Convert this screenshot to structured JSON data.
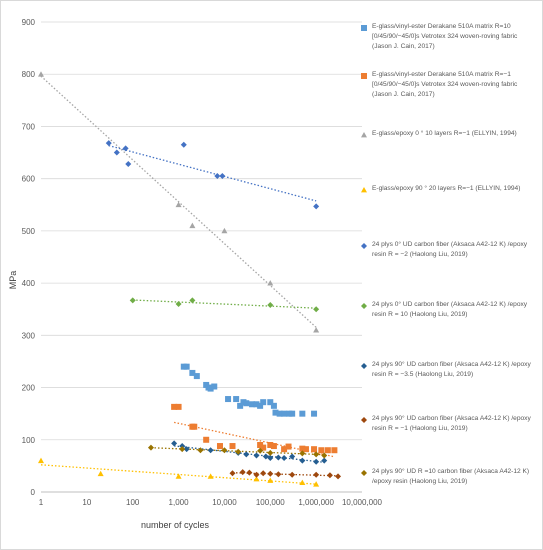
{
  "chart_data": {
    "type": "scatter",
    "xscale": "log",
    "xlim": [
      1,
      10000000
    ],
    "ylim": [
      0,
      900
    ],
    "xlabel": "number of cycles",
    "ylabel": "MPa",
    "x_ticks": [
      1,
      10,
      100,
      1000,
      10000,
      100000,
      1000000,
      10000000
    ],
    "x_tick_labels": [
      "1",
      "10",
      "100",
      "1,000",
      "10,000",
      "100,000",
      "1,000,000",
      "10,000,000"
    ],
    "y_ticks": [
      0,
      100,
      200,
      300,
      400,
      500,
      600,
      700,
      800,
      900
    ],
    "y_tick_labels": [
      "0",
      "100",
      "200",
      "300",
      "400",
      "500",
      "600",
      "700",
      "800",
      "900"
    ],
    "grid": "horizontal",
    "legend_position": "right",
    "series": [
      {
        "name": "E-glass/vinyl-ester Derakane 510A matrix R=10 [0/45/90/−45/0]s Vetrotex 324 woven-roving fabric (Jason J. Cain, 2017)",
        "color": "#5b9bd5",
        "marker": "square",
        "trend": false,
        "points": [
          [
            1300,
            240
          ],
          [
            1500,
            240
          ],
          [
            2000,
            228
          ],
          [
            2500,
            222
          ],
          [
            4000,
            205
          ],
          [
            4500,
            200
          ],
          [
            5000,
            198
          ],
          [
            6000,
            202
          ],
          [
            12000,
            178
          ],
          [
            18000,
            178
          ],
          [
            22000,
            165
          ],
          [
            26000,
            172
          ],
          [
            30000,
            170
          ],
          [
            40000,
            168
          ],
          [
            50000,
            168
          ],
          [
            60000,
            165
          ],
          [
            70000,
            172
          ],
          [
            100000,
            172
          ],
          [
            120000,
            165
          ],
          [
            130000,
            152
          ],
          [
            160000,
            150
          ],
          [
            200000,
            150
          ],
          [
            260000,
            150
          ],
          [
            300000,
            150
          ],
          [
            500000,
            150
          ],
          [
            900000,
            150
          ]
        ]
      },
      {
        "name": "E-glass/vinyl-ester Derakane 510A matrix R=−1 [0/45/90/−45/0]s Vetrotex 324 woven-roving fabric (Jason J. Cain, 2017)",
        "color": "#ed7d31",
        "marker": "square",
        "trend": true,
        "points": [
          [
            800,
            163
          ],
          [
            1000,
            163
          ],
          [
            2000,
            125
          ],
          [
            2200,
            125
          ],
          [
            4000,
            100
          ],
          [
            8000,
            88
          ],
          [
            15000,
            88
          ],
          [
            60000,
            90
          ],
          [
            70000,
            85
          ],
          [
            100000,
            90
          ],
          [
            120000,
            88
          ],
          [
            200000,
            82
          ],
          [
            250000,
            87
          ],
          [
            500000,
            83
          ],
          [
            600000,
            82
          ],
          [
            900000,
            82
          ],
          [
            1300000,
            80
          ],
          [
            1800000,
            80
          ],
          [
            2500000,
            80
          ]
        ]
      },
      {
        "name": "E-glass/epoxy 0 ° 10 layers R=−1 (ELLYIN, 1994)",
        "color": "#a5a5a5",
        "marker": "triangle",
        "trend": true,
        "points": [
          [
            1,
            800
          ],
          [
            1000,
            550
          ],
          [
            2000,
            510
          ],
          [
            10000,
            500
          ],
          [
            100000,
            400
          ],
          [
            1000000,
            310
          ]
        ]
      },
      {
        "name": "E-glass/epoxy 90 ° 20 layers R=−1 (ELLYIN, 1994)",
        "color": "#ffc000",
        "marker": "triangle",
        "trend": true,
        "points": [
          [
            1,
            60
          ],
          [
            20,
            35
          ],
          [
            1000,
            30
          ],
          [
            5000,
            30
          ],
          [
            50000,
            25
          ],
          [
            100000,
            22
          ],
          [
            500000,
            18
          ],
          [
            1000000,
            15
          ]
        ]
      },
      {
        "name": "24 plys 0° UD carbon fiber (Aksaca A42-12 K) /epoxy resin R = −2 (Haolong Liu, 2019)",
        "color": "#4472c4",
        "marker": "diamond",
        "trend": true,
        "points": [
          [
            30,
            668
          ],
          [
            45,
            650
          ],
          [
            70,
            658
          ],
          [
            80,
            628
          ],
          [
            1300,
            665
          ],
          [
            7000,
            605
          ],
          [
            9000,
            605
          ],
          [
            1000000,
            547
          ]
        ]
      },
      {
        "name": "24 plys 0° UD carbon fiber (Aksaca A42-12 K) /epoxy resin R = 10 (Haolong Liu, 2019)",
        "color": "#70ad47",
        "marker": "diamond",
        "trend": true,
        "points": [
          [
            100,
            367
          ],
          [
            1000,
            360
          ],
          [
            2000,
            367
          ],
          [
            100000,
            358
          ],
          [
            1000000,
            350
          ]
        ]
      },
      {
        "name": "24 plys 90° UD carbon fiber (Aksaca A42-12 K) /epoxy resin R = −3.5 (Haolong Liu, 2019)",
        "color": "#255e91",
        "marker": "diamond",
        "trend": true,
        "points": [
          [
            800,
            93
          ],
          [
            1200,
            88
          ],
          [
            1500,
            82
          ],
          [
            5000,
            80
          ],
          [
            20000,
            75
          ],
          [
            30000,
            72
          ],
          [
            50000,
            70
          ],
          [
            80000,
            68
          ],
          [
            100000,
            65
          ],
          [
            150000,
            66
          ],
          [
            200000,
            65
          ],
          [
            300000,
            68
          ],
          [
            500000,
            60
          ],
          [
            1000000,
            58
          ],
          [
            1500000,
            60
          ]
        ]
      },
      {
        "name": "24 plys 90° UD carbon fiber (Aksaca A42-12 K) /epoxy resin R = −1 (Haolong Liu, 2019)",
        "color": "#9e480e",
        "marker": "diamond",
        "trend": true,
        "points": [
          [
            15000,
            36
          ],
          [
            25000,
            38
          ],
          [
            35000,
            37
          ],
          [
            50000,
            33
          ],
          [
            70000,
            36
          ],
          [
            100000,
            35
          ],
          [
            150000,
            34
          ],
          [
            300000,
            33
          ],
          [
            1000000,
            33
          ],
          [
            2000000,
            32
          ],
          [
            3000000,
            30
          ]
        ]
      },
      {
        "name": "24 plys 90° UD R =10 carbon fiber (Aksaca A42-12 K) /epoxy resin (Haolong Liu, 2019)",
        "color": "#997300",
        "marker": "diamond",
        "trend": true,
        "points": [
          [
            250,
            85
          ],
          [
            1200,
            82
          ],
          [
            3000,
            80
          ],
          [
            10000,
            80
          ],
          [
            20000,
            77
          ],
          [
            60000,
            79
          ],
          [
            100000,
            75
          ],
          [
            500000,
            74
          ],
          [
            1000000,
            72
          ],
          [
            1500000,
            70
          ]
        ]
      }
    ]
  }
}
